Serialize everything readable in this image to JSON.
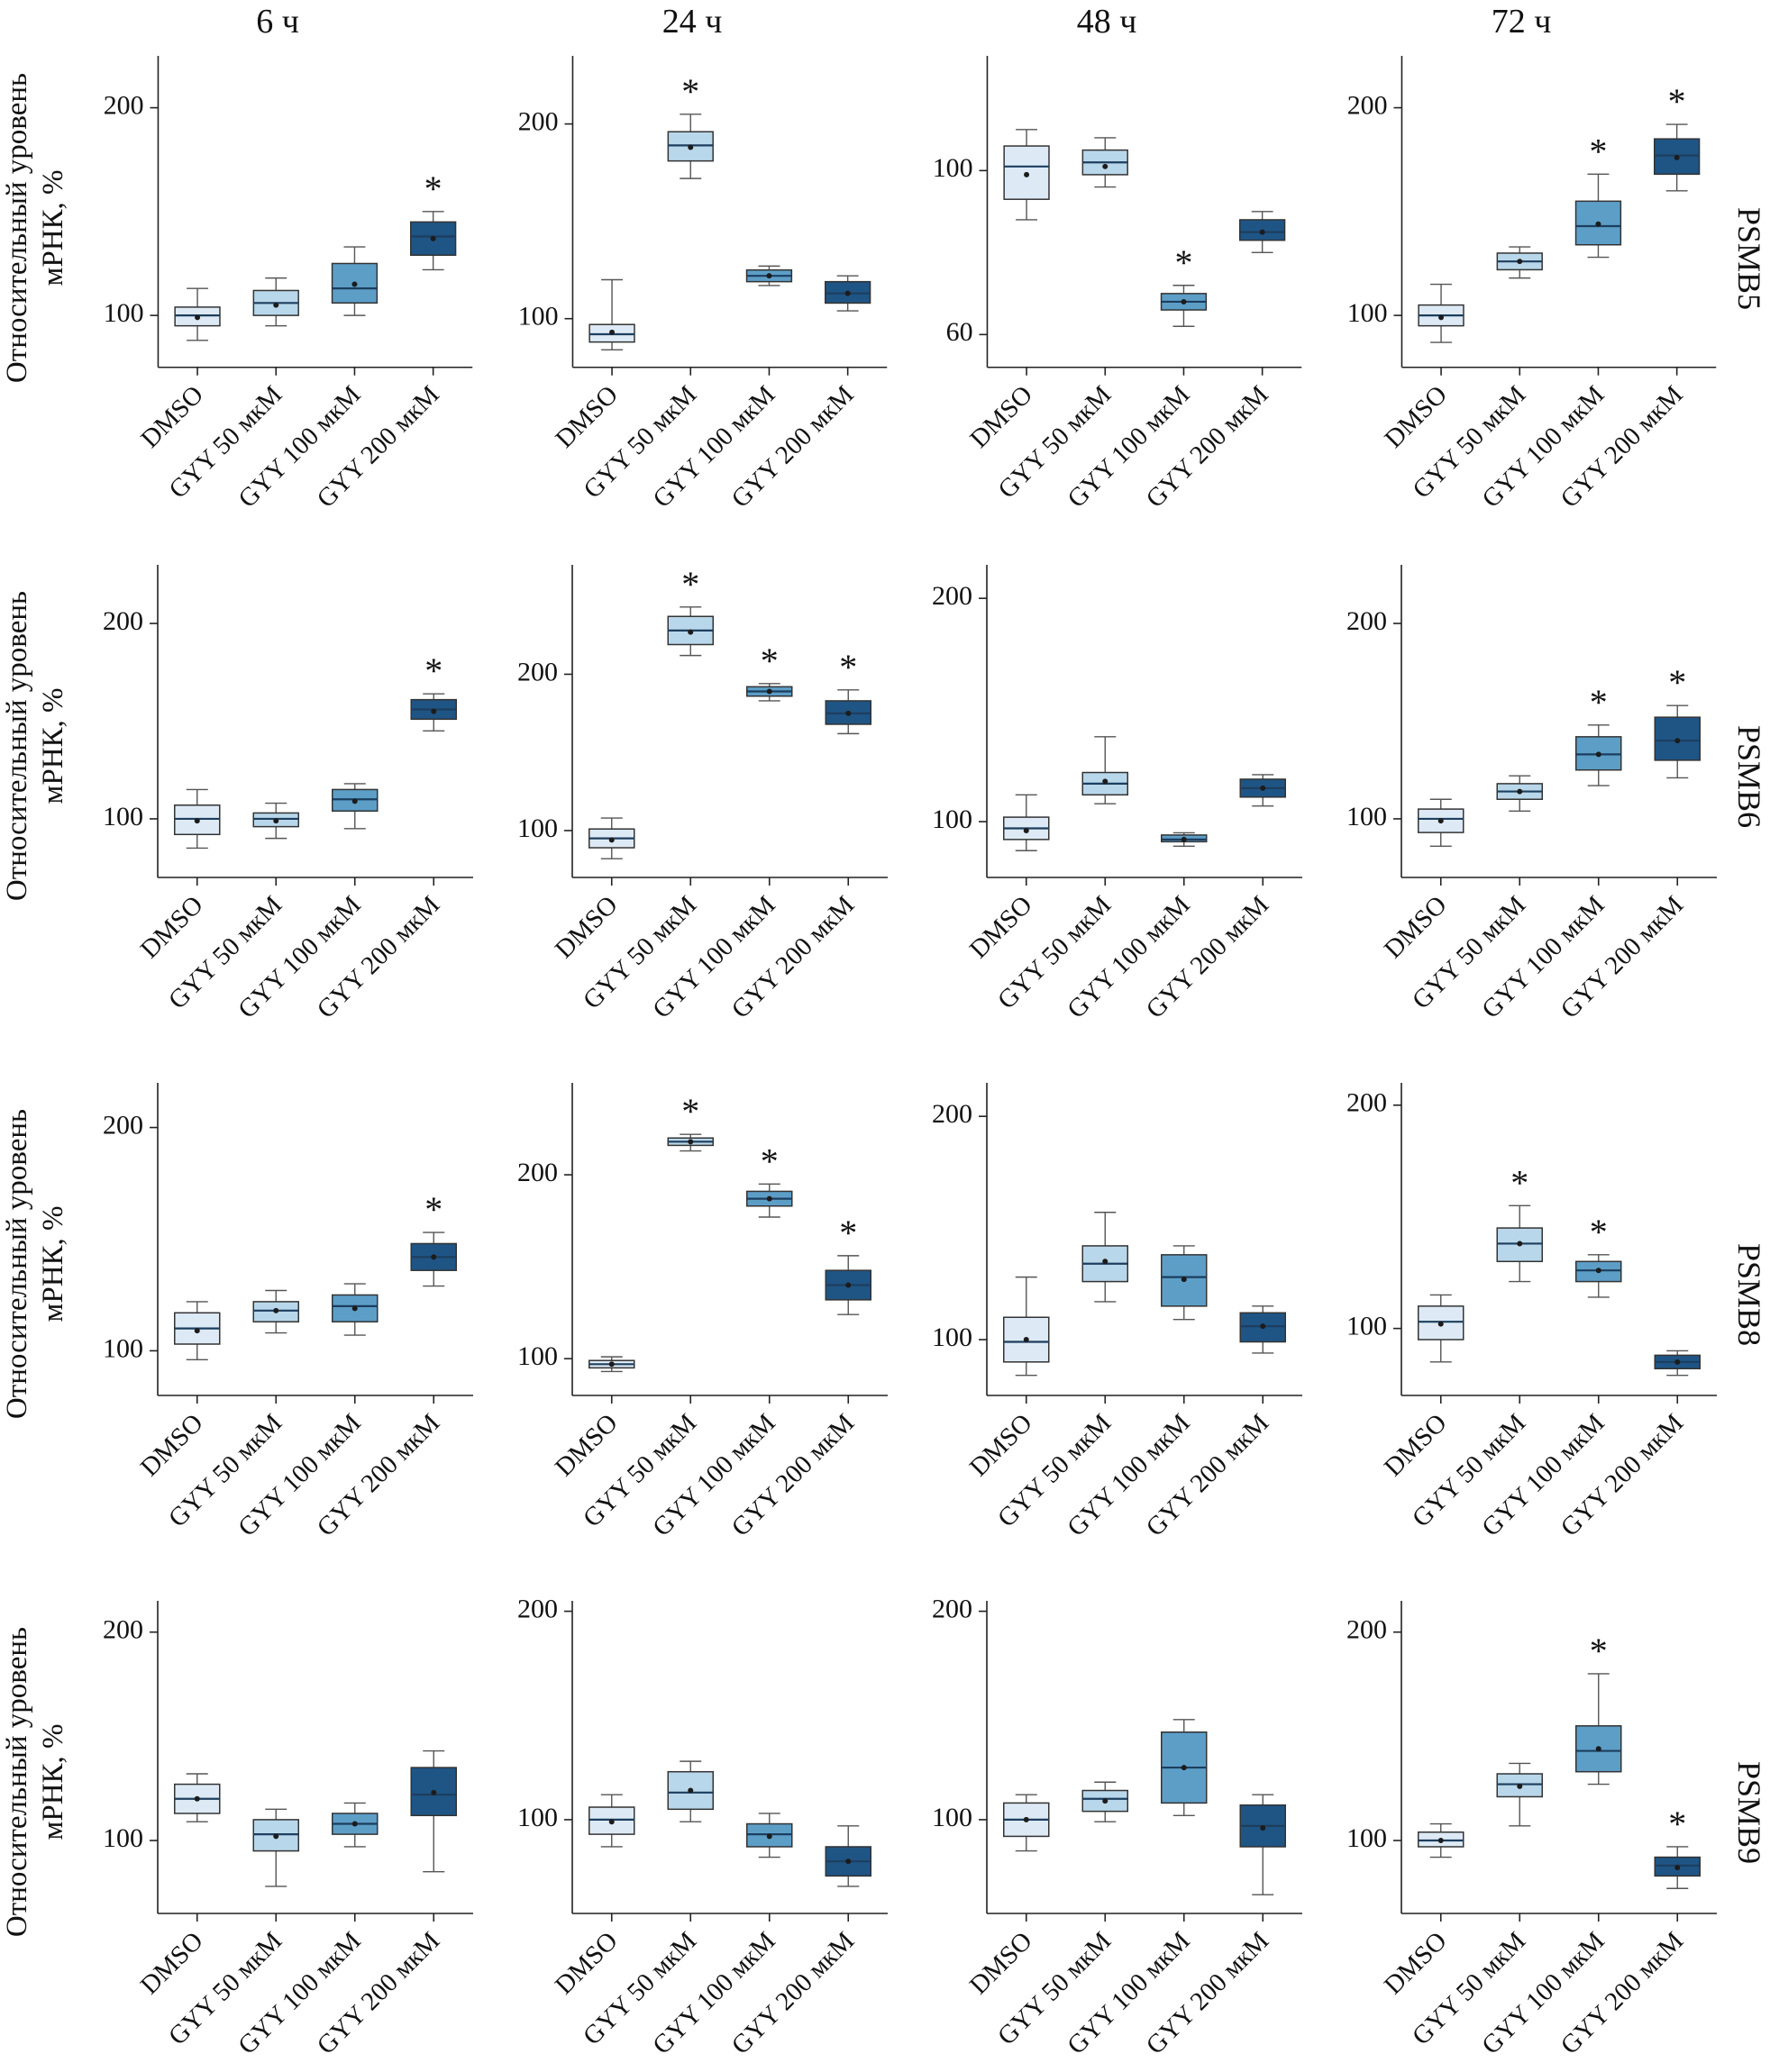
{
  "ylabel": {
    "line1": "Относительный уровень",
    "line2": "мРНК, %"
  },
  "columns": [
    "6 ч",
    "24 ч",
    "48 ч",
    "72 ч"
  ],
  "rows": [
    "PSMB5",
    "PSMB6",
    "PSMB8",
    "PSMB9"
  ],
  "categories": [
    "DMSO",
    "GYY 50 мкМ",
    "GYY 100 мкМ",
    "GYY 200 мкМ"
  ],
  "box_colors": [
    "#ddeaf5",
    "#b9d7ea",
    "#5d9ec7",
    "#1f5585"
  ],
  "significance_marker": "*",
  "box_format": [
    "whisker_low",
    "q1",
    "median",
    "q3",
    "whisker_high",
    "mean_dot",
    "significant"
  ],
  "chart_data": [
    {
      "type": "box",
      "gene": "PSMB5",
      "time": "6 ч",
      "ylim": [
        75,
        225
      ],
      "yticks": [
        100,
        200
      ],
      "boxes": [
        [
          88,
          95,
          100,
          104,
          113,
          99,
          0
        ],
        [
          95,
          100,
          106,
          112,
          118,
          105,
          0
        ],
        [
          100,
          106,
          113,
          125,
          133,
          115,
          0
        ],
        [
          122,
          129,
          138,
          145,
          150,
          137,
          1
        ]
      ]
    },
    {
      "type": "box",
      "gene": "PSMB5",
      "time": "24 ч",
      "ylim": [
        75,
        235
      ],
      "yticks": [
        100,
        200
      ],
      "boxes": [
        [
          84,
          88,
          92,
          97,
          120,
          93,
          0
        ],
        [
          172,
          181,
          189,
          196,
          205,
          188,
          1
        ],
        [
          117,
          119,
          122,
          125,
          127,
          122,
          0
        ],
        [
          104,
          108,
          113,
          119,
          122,
          113,
          0
        ]
      ]
    },
    {
      "type": "box",
      "gene": "PSMB5",
      "time": "48 ч",
      "ylim": [
        52,
        128
      ],
      "yticks": [
        60,
        100
      ],
      "boxes": [
        [
          88,
          93,
          101,
          106,
          110,
          99,
          0
        ],
        [
          96,
          99,
          102,
          105,
          108,
          101,
          0
        ],
        [
          62,
          66,
          68,
          70,
          72,
          68,
          1
        ],
        [
          80,
          83,
          85,
          88,
          90,
          85,
          0
        ]
      ]
    },
    {
      "type": "box",
      "gene": "PSMB5",
      "time": "72 ч",
      "ylim": [
        75,
        225
      ],
      "yticks": [
        100,
        200
      ],
      "boxes": [
        [
          87,
          95,
          100,
          105,
          115,
          99,
          0
        ],
        [
          118,
          122,
          126,
          130,
          133,
          126,
          0
        ],
        [
          128,
          134,
          143,
          155,
          168,
          144,
          1
        ],
        [
          160,
          168,
          177,
          185,
          192,
          176,
          1
        ]
      ]
    },
    {
      "type": "box",
      "gene": "PSMB6",
      "time": "6 ч",
      "ylim": [
        70,
        230
      ],
      "yticks": [
        100,
        200
      ],
      "boxes": [
        [
          85,
          92,
          100,
          107,
          115,
          99,
          0
        ],
        [
          90,
          96,
          100,
          103,
          108,
          99,
          0
        ],
        [
          95,
          104,
          110,
          115,
          118,
          109,
          0
        ],
        [
          145,
          151,
          156,
          161,
          164,
          155,
          1
        ]
      ]
    },
    {
      "type": "box",
      "gene": "PSMB6",
      "time": "24 ч",
      "ylim": [
        70,
        270
      ],
      "yticks": [
        100,
        200
      ],
      "boxes": [
        [
          82,
          89,
          95,
          101,
          108,
          94,
          0
        ],
        [
          212,
          219,
          228,
          237,
          243,
          227,
          1
        ],
        [
          183,
          186,
          189,
          192,
          194,
          189,
          1
        ],
        [
          162,
          168,
          175,
          183,
          190,
          175,
          1
        ]
      ]
    },
    {
      "type": "box",
      "gene": "PSMB6",
      "time": "48 ч",
      "ylim": [
        75,
        215
      ],
      "yticks": [
        100,
        200
      ],
      "boxes": [
        [
          87,
          92,
          97,
          102,
          112,
          96,
          0
        ],
        [
          108,
          112,
          117,
          122,
          138,
          118,
          0
        ],
        [
          89,
          91,
          92,
          94,
          95,
          92,
          0
        ],
        [
          107,
          111,
          115,
          119,
          121,
          115,
          0
        ]
      ]
    },
    {
      "type": "box",
      "gene": "PSMB6",
      "time": "72 ч",
      "ylim": [
        70,
        230
      ],
      "yticks": [
        100,
        200
      ],
      "boxes": [
        [
          86,
          93,
          100,
          105,
          110,
          99,
          0
        ],
        [
          104,
          110,
          114,
          118,
          122,
          114,
          0
        ],
        [
          117,
          125,
          133,
          142,
          148,
          133,
          1
        ],
        [
          121,
          130,
          140,
          152,
          158,
          140,
          1
        ]
      ]
    },
    {
      "type": "box",
      "gene": "PSMB8",
      "time": "6 ч",
      "ylim": [
        80,
        220
      ],
      "yticks": [
        100,
        200
      ],
      "boxes": [
        [
          96,
          103,
          110,
          117,
          122,
          109,
          0
        ],
        [
          108,
          113,
          118,
          122,
          127,
          118,
          0
        ],
        [
          107,
          113,
          120,
          125,
          130,
          119,
          0
        ],
        [
          129,
          136,
          142,
          148,
          153,
          142,
          1
        ]
      ]
    },
    {
      "type": "box",
      "gene": "PSMB8",
      "time": "24 ч",
      "ylim": [
        80,
        250
      ],
      "yticks": [
        100,
        200
      ],
      "boxes": [
        [
          93,
          95,
          97,
          99,
          101,
          97,
          0
        ],
        [
          213,
          216,
          218,
          220,
          222,
          218,
          1
        ],
        [
          177,
          183,
          187,
          191,
          195,
          187,
          1
        ],
        [
          124,
          132,
          140,
          148,
          156,
          140,
          1
        ]
      ]
    },
    {
      "type": "box",
      "gene": "PSMB8",
      "time": "48 ч",
      "ylim": [
        75,
        215
      ],
      "yticks": [
        100,
        200
      ],
      "boxes": [
        [
          84,
          90,
          99,
          110,
          128,
          100,
          0
        ],
        [
          117,
          126,
          134,
          142,
          157,
          135,
          0
        ],
        [
          109,
          115,
          128,
          138,
          142,
          127,
          0
        ],
        [
          94,
          99,
          106,
          112,
          115,
          106,
          0
        ]
      ]
    },
    {
      "type": "box",
      "gene": "PSMB8",
      "time": "72 ч",
      "ylim": [
        70,
        210
      ],
      "yticks": [
        100,
        200
      ],
      "boxes": [
        [
          85,
          95,
          103,
          110,
          115,
          102,
          0
        ],
        [
          121,
          130,
          138,
          145,
          155,
          138,
          1
        ],
        [
          114,
          121,
          126,
          130,
          133,
          126,
          1
        ],
        [
          79,
          82,
          85,
          88,
          90,
          85,
          0
        ]
      ]
    },
    {
      "type": "box",
      "gene": "PSMB9",
      "time": "6 ч",
      "ylim": [
        65,
        215
      ],
      "yticks": [
        100,
        200
      ],
      "boxes": [
        [
          109,
          113,
          120,
          127,
          132,
          120,
          0
        ],
        [
          78,
          95,
          103,
          110,
          115,
          102,
          0
        ],
        [
          97,
          103,
          108,
          113,
          118,
          108,
          0
        ],
        [
          85,
          112,
          122,
          135,
          143,
          123,
          0
        ]
      ]
    },
    {
      "type": "box",
      "gene": "PSMB9",
      "time": "24 ч",
      "ylim": [
        55,
        205
      ],
      "yticks": [
        100,
        200
      ],
      "boxes": [
        [
          87,
          93,
          100,
          106,
          112,
          99,
          0
        ],
        [
          99,
          105,
          113,
          123,
          128,
          114,
          0
        ],
        [
          82,
          87,
          93,
          98,
          103,
          92,
          0
        ],
        [
          68,
          73,
          80,
          87,
          97,
          80,
          0
        ]
      ]
    },
    {
      "type": "box",
      "gene": "PSMB9",
      "time": "48 ч",
      "ylim": [
        55,
        205
      ],
      "yticks": [
        100,
        200
      ],
      "boxes": [
        [
          85,
          92,
          100,
          108,
          112,
          100,
          0
        ],
        [
          99,
          104,
          110,
          114,
          118,
          109,
          0
        ],
        [
          102,
          108,
          125,
          142,
          148,
          125,
          0
        ],
        [
          64,
          87,
          97,
          107,
          112,
          96,
          0
        ]
      ]
    },
    {
      "type": "box",
      "gene": "PSMB9",
      "time": "72 ч",
      "ylim": [
        65,
        215
      ],
      "yticks": [
        100,
        200
      ],
      "boxes": [
        [
          92,
          97,
          100,
          104,
          108,
          100,
          0
        ],
        [
          107,
          121,
          127,
          132,
          137,
          126,
          0
        ],
        [
          127,
          133,
          143,
          155,
          180,
          144,
          1
        ],
        [
          77,
          83,
          88,
          92,
          97,
          87,
          1
        ]
      ]
    }
  ]
}
